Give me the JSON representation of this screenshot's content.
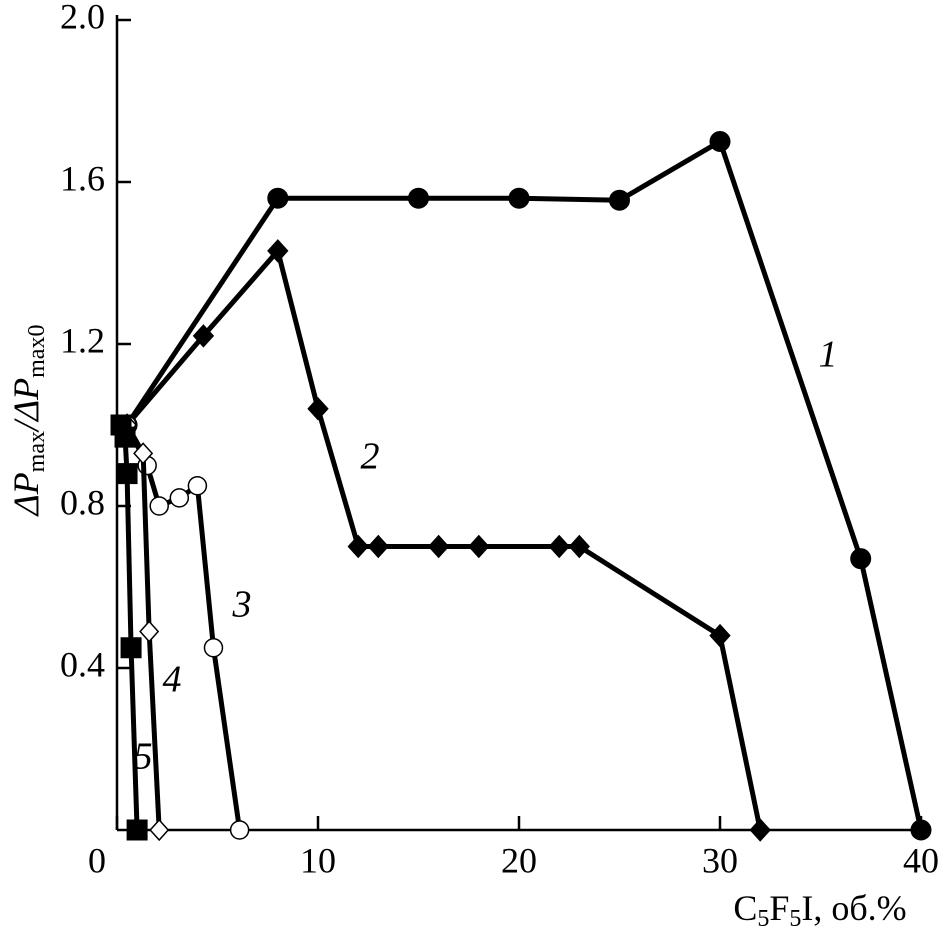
{
  "chart_data": {
    "type": "line",
    "xlabel_parts": [
      "C",
      "5",
      "F",
      "5",
      "I, об.%"
    ],
    "ylabel_parts": [
      "ΔP",
      "max",
      "/ΔP",
      "max0"
    ],
    "xlim": [
      0,
      40
    ],
    "xticks": [
      0,
      10,
      20,
      30,
      40
    ],
    "ylim": [
      0,
      2
    ],
    "yticks": [
      {
        "value": 2,
        "label": "2.0"
      },
      1.6,
      1.2,
      0.8,
      0.4
    ],
    "series": [
      {
        "name": "1",
        "color": "#000",
        "marker": "circle",
        "filled": true,
        "x": [
          0.5,
          8,
          15,
          20,
          25,
          30,
          37,
          40
        ],
        "values": [
          1.0,
          1.56,
          1.56,
          1.56,
          1.555,
          1.7,
          0.67,
          0
        ]
      },
      {
        "name": "2",
        "color": "#000",
        "marker": "diamond",
        "filled": true,
        "x": [
          0.5,
          4.3,
          8,
          10,
          12,
          13,
          16,
          18,
          22,
          23,
          30,
          32
        ],
        "values": [
          1.0,
          1.22,
          1.43,
          1.04,
          0.7,
          0.7,
          0.7,
          0.7,
          0.7,
          0.7,
          0.48,
          0
        ]
      },
      {
        "name": "3",
        "color": "#000",
        "marker": "circle",
        "filled": false,
        "x": [
          0.5,
          1.5,
          2.1,
          3.1,
          4.0,
          4.8,
          6.1
        ],
        "values": [
          1.0,
          0.9,
          0.8,
          0.82,
          0.85,
          0.45,
          0
        ]
      },
      {
        "name": "4",
        "color": "#000",
        "marker": "diamond",
        "filled": false,
        "x": [
          0.5,
          1.3,
          1.6,
          2.1
        ],
        "values": [
          1.0,
          0.93,
          0.49,
          0
        ]
      },
      {
        "name": "5",
        "color": "#000",
        "marker": "square",
        "filled": true,
        "x": [
          0.2,
          0.4,
          0.5,
          0.7,
          1.0
        ],
        "values": [
          1.0,
          0.97,
          0.88,
          0.45,
          0
        ]
      }
    ]
  }
}
